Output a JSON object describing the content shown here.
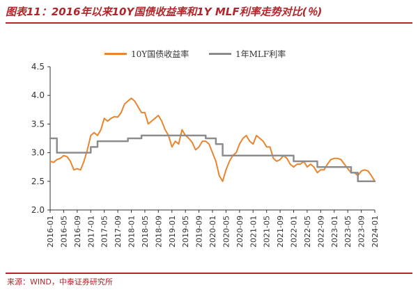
{
  "title": "图表11：2016年以来10Y国债收益率和1Y MLF利率走势对比(％)",
  "source": "来源：WIND，中泰证券研究所",
  "colors": {
    "accent": "#b0262a",
    "series_10y": "#e8852e",
    "series_mlf": "#8c8c8c"
  },
  "chart_data": {
    "type": "line",
    "title": "",
    "xlabel": "",
    "ylabel": "",
    "ylim": [
      2.0,
      4.5
    ],
    "yticks": [
      "2.0",
      "2.5",
      "3.0",
      "3.5",
      "4.0",
      "4.5"
    ],
    "xticks": [
      "2016-01",
      "2016-05",
      "2016-09",
      "2017-01",
      "2017-05",
      "2017-09",
      "2018-01",
      "2018-05",
      "2018-09",
      "2019-01",
      "2019-05",
      "2019-09",
      "2020-01",
      "2020-05",
      "2020-09",
      "2021-01",
      "2021-05",
      "2021-09",
      "2022-01",
      "2022-05",
      "2022-09",
      "2023-01",
      "2023-05",
      "2023-09",
      "2024-01"
    ],
    "legend": "top-center",
    "grid": false,
    "series": [
      {
        "name": "10Y国债收益率",
        "x": [
          "2016-01",
          "2016-02",
          "2016-03",
          "2016-04",
          "2016-05",
          "2016-06",
          "2016-07",
          "2016-08",
          "2016-09",
          "2016-10",
          "2016-11",
          "2016-12",
          "2017-01",
          "2017-02",
          "2017-03",
          "2017-04",
          "2017-05",
          "2017-06",
          "2017-07",
          "2017-08",
          "2017-09",
          "2017-10",
          "2017-11",
          "2017-12",
          "2018-01",
          "2018-02",
          "2018-03",
          "2018-04",
          "2018-05",
          "2018-06",
          "2018-07",
          "2018-08",
          "2018-09",
          "2018-10",
          "2018-11",
          "2018-12",
          "2019-01",
          "2019-02",
          "2019-03",
          "2019-04",
          "2019-05",
          "2019-06",
          "2019-07",
          "2019-08",
          "2019-09",
          "2019-10",
          "2019-11",
          "2019-12",
          "2020-01",
          "2020-02",
          "2020-03",
          "2020-04",
          "2020-05",
          "2020-06",
          "2020-07",
          "2020-08",
          "2020-09",
          "2020-10",
          "2020-11",
          "2020-12",
          "2021-01",
          "2021-02",
          "2021-03",
          "2021-04",
          "2021-05",
          "2021-06",
          "2021-07",
          "2021-08",
          "2021-09",
          "2021-10",
          "2021-11",
          "2021-12",
          "2022-01",
          "2022-02",
          "2022-03",
          "2022-04",
          "2022-05",
          "2022-06",
          "2022-07",
          "2022-08",
          "2022-09",
          "2022-10",
          "2022-11",
          "2022-12",
          "2023-01",
          "2023-02",
          "2023-03",
          "2023-04",
          "2023-05",
          "2023-06",
          "2023-07",
          "2023-08",
          "2023-09",
          "2023-10",
          "2023-11",
          "2023-12",
          "2024-01"
        ],
        "values": [
          2.85,
          2.83,
          2.88,
          2.9,
          2.95,
          2.93,
          2.85,
          2.7,
          2.72,
          2.7,
          2.85,
          3.05,
          3.3,
          3.35,
          3.3,
          3.4,
          3.6,
          3.55,
          3.6,
          3.63,
          3.62,
          3.7,
          3.85,
          3.9,
          3.95,
          3.9,
          3.8,
          3.7,
          3.7,
          3.5,
          3.55,
          3.6,
          3.65,
          3.55,
          3.4,
          3.3,
          3.1,
          3.2,
          3.15,
          3.4,
          3.3,
          3.25,
          3.18,
          3.05,
          3.1,
          3.2,
          3.2,
          3.15,
          3.0,
          2.85,
          2.6,
          2.5,
          2.7,
          2.85,
          2.95,
          3.0,
          3.15,
          3.25,
          3.3,
          3.2,
          3.15,
          3.3,
          3.25,
          3.2,
          3.1,
          3.1,
          2.9,
          2.85,
          2.88,
          2.95,
          2.9,
          2.8,
          2.75,
          2.8,
          2.8,
          2.85,
          2.75,
          2.8,
          2.75,
          2.65,
          2.7,
          2.7,
          2.8,
          2.88,
          2.9,
          2.9,
          2.88,
          2.8,
          2.72,
          2.65,
          2.65,
          2.6,
          2.68,
          2.7,
          2.68,
          2.6,
          2.5
        ]
      },
      {
        "name": "1年MLF利率",
        "x": [
          "2016-01",
          "2016-03",
          "2016-03",
          "2017-01",
          "2017-01",
          "2017-03",
          "2017-03",
          "2017-12",
          "2017-12",
          "2018-04",
          "2018-04",
          "2019-11",
          "2019-11",
          "2020-02",
          "2020-02",
          "2020-04",
          "2020-04",
          "2022-01",
          "2022-01",
          "2022-08",
          "2022-08",
          "2023-06",
          "2023-06",
          "2023-08",
          "2023-08",
          "2024-01"
        ],
        "values": [
          3.25,
          3.25,
          3.0,
          3.0,
          3.1,
          3.1,
          3.2,
          3.2,
          3.25,
          3.25,
          3.3,
          3.3,
          3.25,
          3.25,
          3.15,
          3.15,
          2.95,
          2.95,
          2.85,
          2.85,
          2.75,
          2.75,
          2.65,
          2.65,
          2.5,
          2.5
        ]
      }
    ]
  }
}
